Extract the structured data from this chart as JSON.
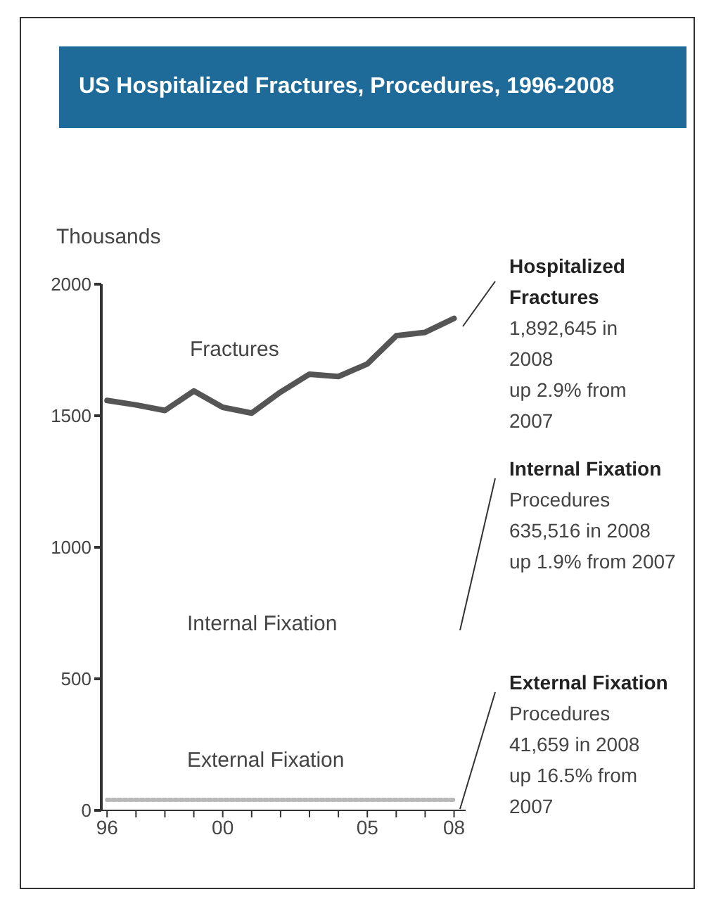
{
  "chart_data": {
    "type": "line",
    "title": "US Hospitalized Fractures, Procedures, 1996-2008",
    "ylabel": "Thousands",
    "x": [
      1996,
      1997,
      1998,
      1999,
      2000,
      2001,
      2002,
      2003,
      2004,
      2005,
      2006,
      2007,
      2008
    ],
    "series": [
      {
        "name": "Fractures",
        "color": "#555555",
        "values": [
          1558,
          1541,
          1520,
          1594,
          1532,
          1510,
          1590,
          1658,
          1649,
          1697,
          1804,
          1817,
          1870
        ]
      },
      {
        "name": "External Fixation",
        "color": "#b8b8b8",
        "line_style": "dotted",
        "values": [
          40,
          40,
          40,
          40,
          40,
          40,
          40,
          40,
          40,
          40,
          40,
          40,
          40
        ]
      }
    ],
    "xlim": [
      1995.8,
      2008.4
    ],
    "xticks": [
      {
        "value": 1996,
        "label": "96"
      },
      {
        "value": 1997,
        "label": null
      },
      {
        "value": 1998,
        "label": null
      },
      {
        "value": 1999,
        "label": null
      },
      {
        "value": 2000,
        "label": "00"
      },
      {
        "value": 2001,
        "label": null
      },
      {
        "value": 2002,
        "label": null
      },
      {
        "value": 2003,
        "label": null
      },
      {
        "value": 2004,
        "label": null
      },
      {
        "value": 2005,
        "label": "05"
      },
      {
        "value": 2006,
        "label": null
      },
      {
        "value": 2007,
        "label": null
      },
      {
        "value": 2008,
        "label": "08"
      }
    ],
    "ylim": [
      0,
      2000
    ],
    "yticks": [
      0,
      500,
      1000,
      1500,
      2000
    ],
    "grid": false,
    "legend": false,
    "marker": "none",
    "annotations": [
      "Internal Fixation",
      "Hospitalized Fractures\n1,892,645 in 2008\nup 2.9% from 2007",
      "Internal Fixation\nProcedures\n635,516 in 2008\nup 1.9% from 2007",
      "External Fixation\nProcedures\n41,659 in 2008\nup 16.5% from 2007"
    ]
  }
}
